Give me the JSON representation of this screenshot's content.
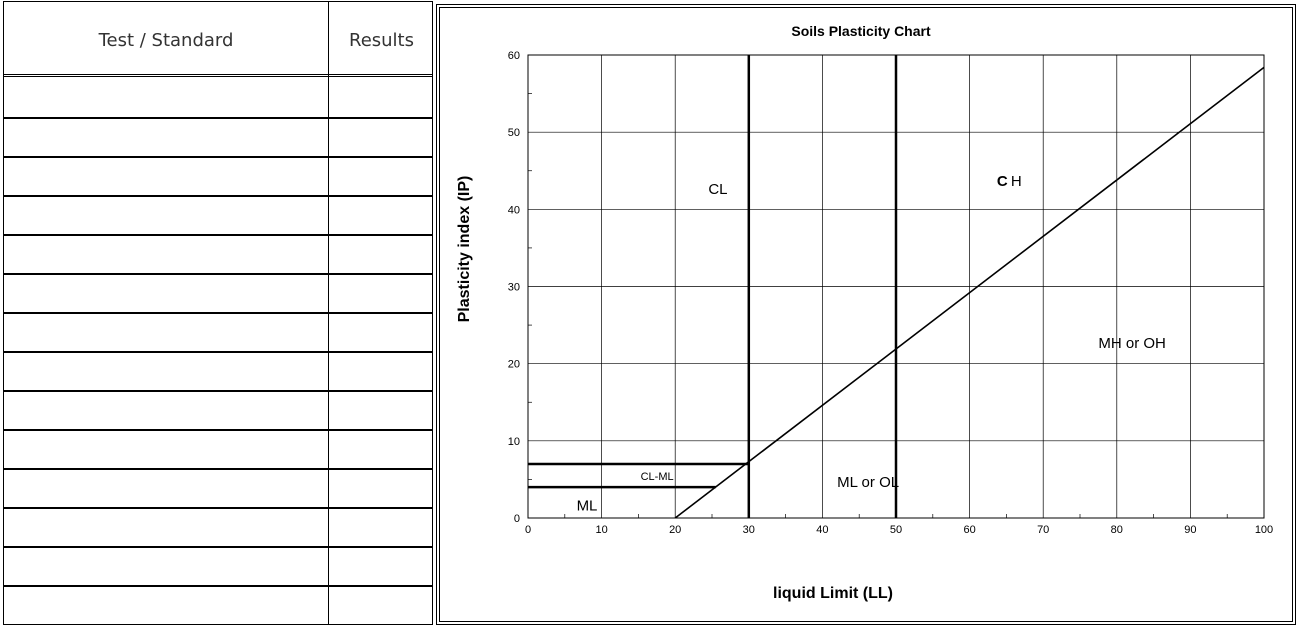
{
  "table": {
    "headers": {
      "test": "Test / Standard",
      "results": "Results"
    },
    "rows": [
      {
        "test": "",
        "results": ""
      },
      {
        "test": "",
        "results": ""
      },
      {
        "test": "",
        "results": ""
      },
      {
        "test": "",
        "results": ""
      },
      {
        "test": "",
        "results": ""
      },
      {
        "test": "",
        "results": ""
      },
      {
        "test": "",
        "results": ""
      },
      {
        "test": "",
        "results": ""
      },
      {
        "test": "",
        "results": ""
      },
      {
        "test": "",
        "results": ""
      },
      {
        "test": "",
        "results": ""
      },
      {
        "test": "",
        "results": ""
      },
      {
        "test": "",
        "results": ""
      },
      {
        "test": "",
        "results": ""
      }
    ]
  },
  "chart_data": {
    "type": "line",
    "title": "Soils Plasticity Chart",
    "xlabel": "liquid Limit (LL)",
    "ylabel": "Plasticity index (IP)",
    "xlim": [
      0,
      100
    ],
    "ylim": [
      0,
      60
    ],
    "x_ticks": [
      0,
      10,
      20,
      30,
      40,
      50,
      60,
      70,
      80,
      90,
      100
    ],
    "y_ticks": [
      0,
      10,
      20,
      30,
      40,
      50,
      60
    ],
    "grid": true,
    "a_line": {
      "x": [
        20,
        100
      ],
      "y": [
        0,
        58.4
      ]
    },
    "boundaries": [
      {
        "x": [
          30,
          30
        ],
        "y": [
          0,
          60
        ]
      },
      {
        "x": [
          50,
          50
        ],
        "y": [
          0,
          60
        ]
      },
      {
        "x": [
          0,
          30
        ],
        "y": [
          7,
          7
        ]
      },
      {
        "x": [
          0,
          25.5
        ],
        "y": [
          4,
          4
        ]
      }
    ],
    "zones": [
      {
        "label": "CL",
        "x": 24.5,
        "y": 42
      },
      {
        "label": "C",
        "label_bold_part": true,
        "x": 63.7,
        "y": 43
      },
      {
        "label": "H",
        "x": 65.6,
        "y": 43
      },
      {
        "label": "MH or OH",
        "x": 77.5,
        "y": 22
      },
      {
        "label": "ML or OL",
        "x": 42,
        "y": 4
      },
      {
        "label": "CL-ML",
        "x": 15.3,
        "y": 4.9,
        "small": true
      },
      {
        "label": "ML",
        "x": 6.6,
        "y": 1
      }
    ]
  }
}
